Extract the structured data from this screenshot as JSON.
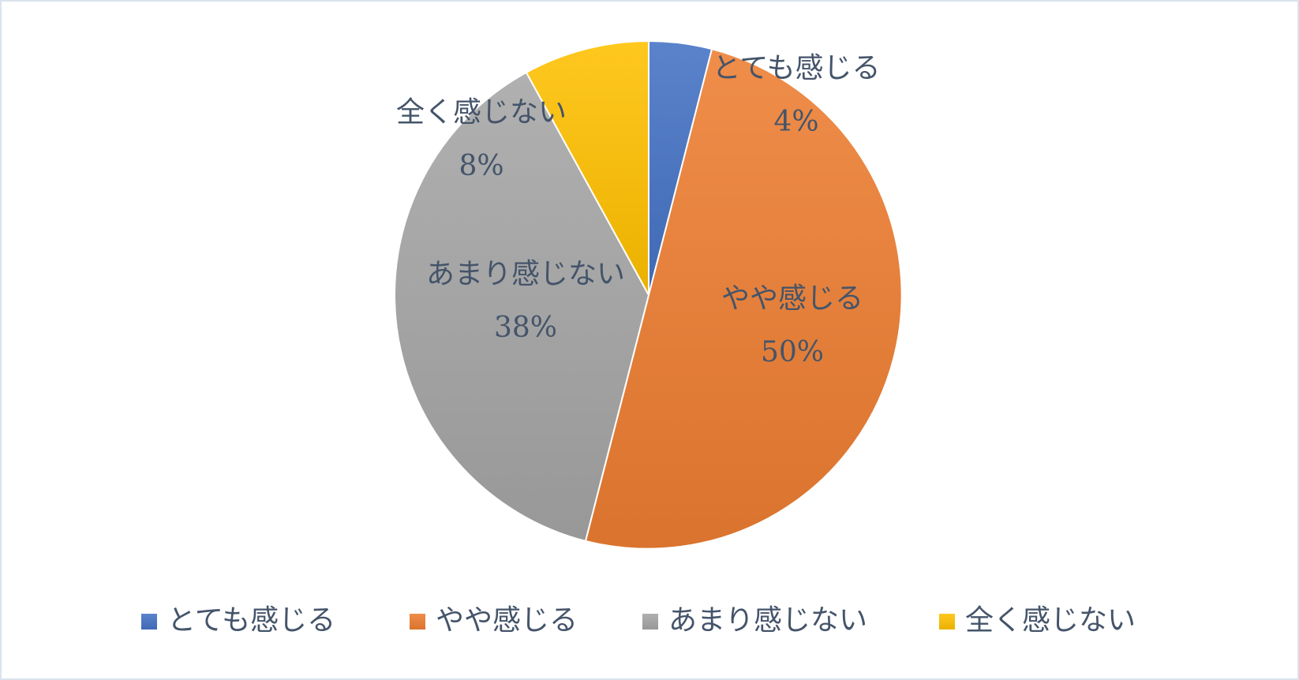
{
  "chart_data": {
    "type": "pie",
    "title": "",
    "categories": [
      "とても感じる",
      "やや感じる",
      "あまり感じない",
      "全く感じない"
    ],
    "values": [
      4,
      50,
      38,
      8
    ],
    "value_labels": [
      "4%",
      "50%",
      "38%",
      "8%"
    ],
    "colors": [
      "#4472c4",
      "#ed7d31",
      "#a5a5a5",
      "#ffc000"
    ],
    "start_angle_deg": 0,
    "direction": "clockwise",
    "legend": {
      "position": "bottom",
      "entries": [
        "とても感じる",
        "やや感じる",
        "あまり感じない",
        "全く感じない"
      ]
    }
  }
}
